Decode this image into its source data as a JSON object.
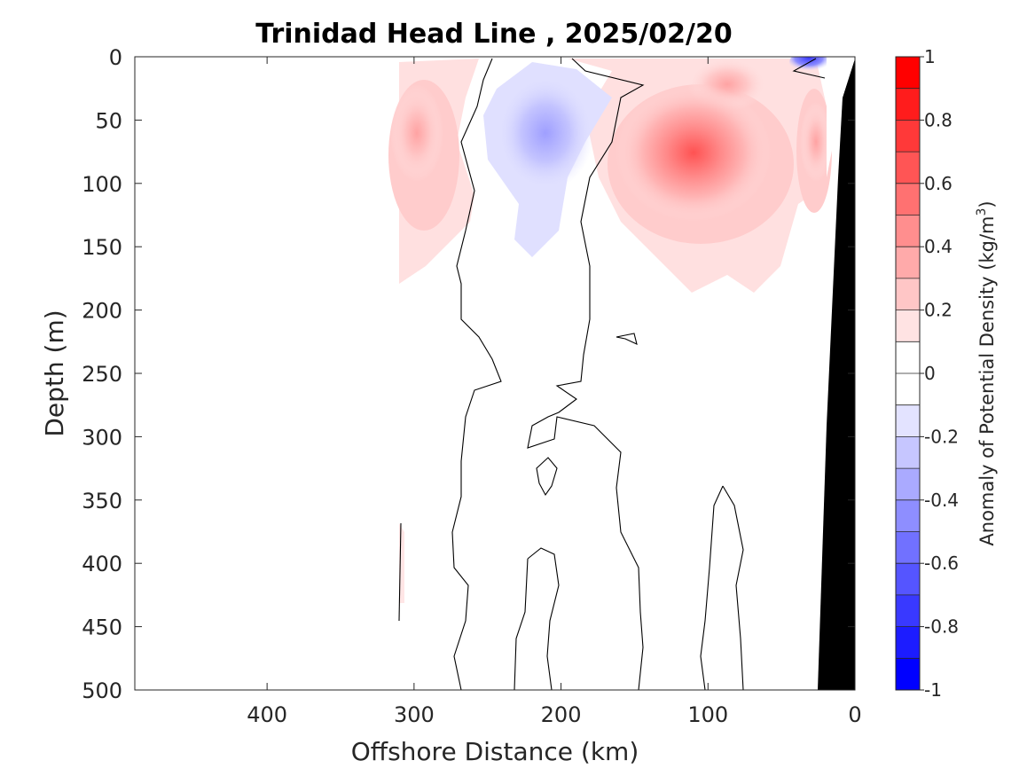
{
  "chart_data": {
    "type": "heatmap",
    "title": "Trinidad Head Line , 2025/02/20",
    "xlabel": "Offshore Distance (km)",
    "ylabel": "Depth (m)",
    "xlim": [
      490,
      0
    ],
    "ylim": [
      500,
      0
    ],
    "x_reversed": true,
    "y_reversed": true,
    "xticks": [
      400,
      300,
      200,
      100,
      0
    ],
    "yticks": [
      0,
      50,
      100,
      150,
      200,
      250,
      300,
      350,
      400,
      450,
      500
    ],
    "data_x_range": [
      310,
      20
    ],
    "colorbar": {
      "label": "Anomaly of Potential Density (kg/m",
      "label_superscript": "3",
      "label_suffix": ")",
      "range": [
        -1,
        1
      ],
      "ticks": [
        "1",
        "0.8",
        "0.6",
        "0.4",
        "0.2",
        "0",
        "-0.2",
        "-0.4",
        "-0.6",
        "-0.8",
        "-1"
      ],
      "tick_values": [
        1,
        0.8,
        0.6,
        0.4,
        0.2,
        0,
        -0.2,
        -0.4,
        -0.6,
        -0.8,
        -1
      ],
      "levels": 20,
      "colormap": "blue-white-red"
    },
    "features": [
      {
        "name": "positive anomaly core",
        "x": 110,
        "y": 75,
        "value": 0.7
      },
      {
        "name": "positive anomaly offshore",
        "x": 300,
        "y": 80,
        "value": 0.3
      },
      {
        "name": "positive anomaly inshore",
        "x": 30,
        "y": 60,
        "value": 0.3
      },
      {
        "name": "negative anomaly core",
        "x": 215,
        "y": 60,
        "value": -0.35
      },
      {
        "name": "negative anomaly surface",
        "x": 35,
        "y": 5,
        "value": -0.6
      }
    ],
    "bathymetry_color": "#000000",
    "contour_color": "#000000"
  }
}
